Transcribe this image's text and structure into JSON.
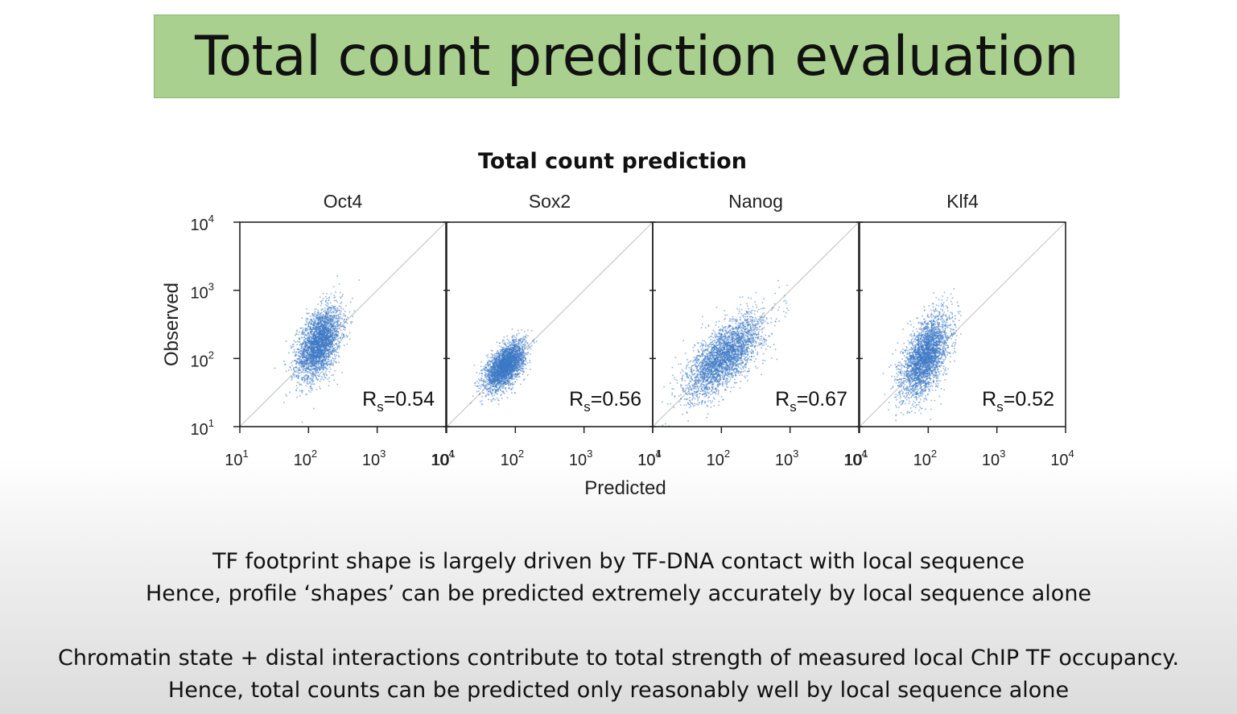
{
  "slide": {
    "title": "Total count prediction evaluation",
    "paragraphs": [
      [
        "TF footprint shape is largely driven by TF-DNA contact with local sequence",
        "Hence, profile ‘shapes’ can be predicted extremely accurately by local sequence alone"
      ],
      [
        "Chromatin state + distal interactions contribute to total strength of measured local ChIP TF occupancy.",
        "Hence, total counts can be predicted only reasonably well by local sequence alone"
      ]
    ]
  },
  "chart_data": {
    "type": "scatter",
    "title": "Total count prediction",
    "xlabel": "Predicted",
    "ylabel": "Observed",
    "xscale": "log",
    "yscale": "log",
    "xlim": [
      10,
      10000
    ],
    "ylim": [
      10,
      10000
    ],
    "ticks": [
      10,
      100,
      1000,
      10000
    ],
    "tick_base": "10",
    "tick_exponents": [
      "1",
      "2",
      "3",
      "4"
    ],
    "point_color": "#3d78c4",
    "diagonal": "y = x",
    "panels": [
      {
        "name": "Oct4",
        "stat_label": "R",
        "stat_sub": "s",
        "stat_value": "=0.54",
        "cloud": {
          "center_x": 140,
          "center_y": 170,
          "sd_x_log": 0.16,
          "sd_y_log": 0.26,
          "corr": 0.45,
          "n": 3000
        }
      },
      {
        "name": "Sox2",
        "stat_label": "R",
        "stat_sub": "s",
        "stat_value": "=0.56",
        "cloud": {
          "center_x": 70,
          "center_y": 80,
          "sd_x_log": 0.14,
          "sd_y_log": 0.17,
          "corr": 0.55,
          "n": 3000
        }
      },
      {
        "name": "Nanog",
        "stat_label": "R",
        "stat_sub": "s",
        "stat_value": "=0.67",
        "cloud": {
          "center_x": 110,
          "center_y": 110,
          "sd_x_log": 0.28,
          "sd_y_log": 0.3,
          "corr": 0.7,
          "n": 3000
        }
      },
      {
        "name": "Klf4",
        "stat_label": "R",
        "stat_sub": "s",
        "stat_value": "=0.52",
        "cloud": {
          "center_x": 90,
          "center_y": 110,
          "sd_x_log": 0.17,
          "sd_y_log": 0.3,
          "corr": 0.55,
          "n": 3000
        }
      }
    ]
  }
}
